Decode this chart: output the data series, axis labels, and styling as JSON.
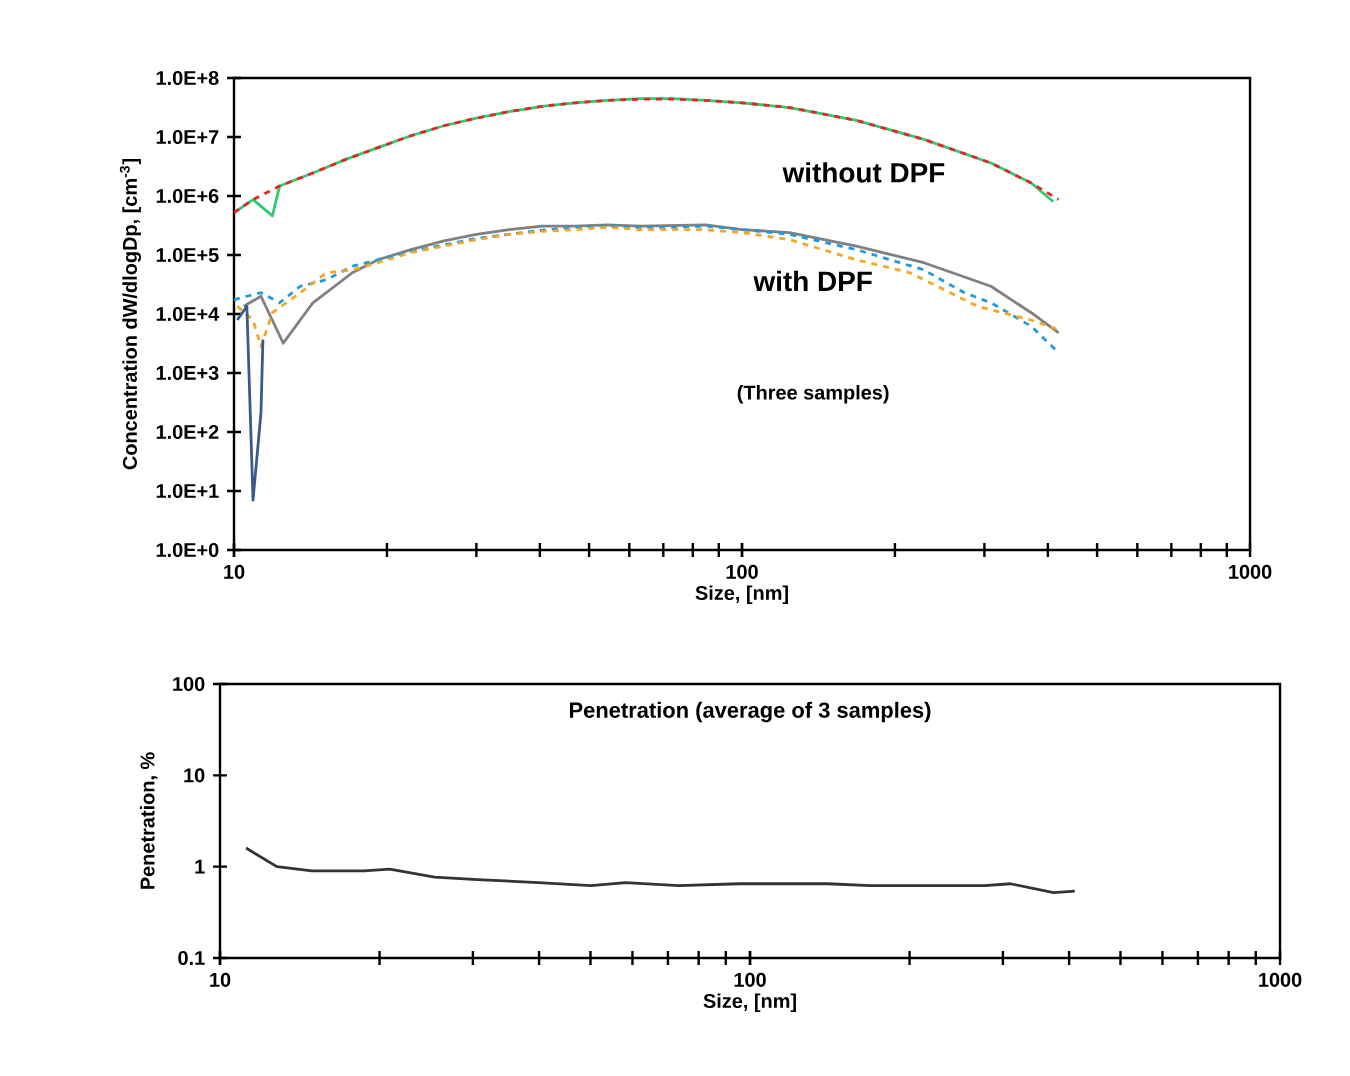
{
  "chart_data": [
    {
      "type": "line",
      "xlabel": "Size, [nm]",
      "ylabel": "Concentration dW/dlogDp, [cm$^{-3}$]",
      "log": "xy",
      "xlim": [
        10,
        1000
      ],
      "ylim": [
        1,
        100000000
      ],
      "xticks": [
        10,
        100,
        1000
      ],
      "yticks": [
        {
          "value": 1,
          "label": "1.0E+0"
        },
        {
          "value": 10,
          "label": "1.0E+1"
        },
        {
          "value": 100,
          "label": "1.0E+2"
        },
        {
          "value": 1000,
          "label": "1.0E+3"
        },
        {
          "value": 10000,
          "label": "1.0E+4"
        },
        {
          "value": 100000,
          "label": "1.0E+5"
        },
        {
          "value": 1000000,
          "label": "1.0E+6"
        },
        {
          "value": 10000000,
          "label": "1.0E+7"
        },
        {
          "value": 100000000,
          "label": "1.0E+8"
        }
      ],
      "annotations": [
        "without DPF",
        "with DPF",
        "(Three samples)"
      ],
      "grid": false,
      "marker": "none",
      "series": [
        {
          "color": "#2ecc71",
          "line_style": "solid",
          "x": [
            10,
            10.9,
            11.9,
            12.3,
            14.3,
            16.6,
            19.2,
            22.3,
            25.9,
            30,
            34.8,
            40.4,
            46.9,
            54.3,
            63.1,
            73.2,
            84.9,
            100,
            124,
            168,
            228,
            309,
            371,
            410
          ],
          "values": [
            520000,
            870000,
            460000,
            1480000,
            2450000,
            4170000,
            6600000,
            10500000,
            15500000,
            20900000,
            26900000,
            33100000,
            38000000,
            41700000,
            44700000,
            44700000,
            41700000,
            38000000,
            31600000,
            19100000,
            9100000,
            3630000,
            1660000,
            800000
          ]
        },
        {
          "color": "#ee2222",
          "line_style": "dashed",
          "x": [
            10,
            10.9,
            12.3,
            14.3,
            16.6,
            19.2,
            22.3,
            25.9,
            30,
            34.8,
            40.4,
            46.9,
            54.3,
            63.1,
            73.2,
            84.9,
            100,
            124,
            168,
            228,
            309,
            371,
            420
          ],
          "values": [
            525000,
            870000,
            1480000,
            2450000,
            4170000,
            6610000,
            10500000,
            15500000,
            20900000,
            26900000,
            33100000,
            38000000,
            41700000,
            43700000,
            43700000,
            41700000,
            38000000,
            31600000,
            19100000,
            9120000,
            3630000,
            1660000,
            870000
          ]
        },
        {
          "color": "#808080",
          "line_style": "solid",
          "x": [
            10.45,
            11.3,
            12.5,
            14.3,
            17.1,
            19.2,
            22.3,
            25.9,
            30,
            34.8,
            40.4,
            46.9,
            54.3,
            63.1,
            84.9,
            100,
            124,
            168,
            228,
            309,
            371,
            420
          ],
          "values": [
            13500,
            20000,
            3200,
            15500,
            50000,
            83000,
            123000,
            174000,
            224000,
            269000,
            309000,
            309000,
            324000,
            309000,
            324000,
            269000,
            240000,
            141000,
            74000,
            29500,
            10500,
            4800
          ]
        },
        {
          "color": "#1e9be0",
          "line_style": "dashed",
          "x": [
            10,
            10.6,
            11.3,
            12.3,
            13.5,
            15.2,
            17.1,
            19.2,
            22.3,
            25.9,
            30,
            34.8,
            40.4,
            46.9,
            54.3,
            63.1,
            73.2,
            84.9,
            100,
            124,
            168,
            228,
            274,
            309,
            371,
            420
          ],
          "values": [
            17400,
            20000,
            22900,
            15500,
            29500,
            38000,
            64600,
            83000,
            115000,
            148000,
            191000,
            224000,
            263000,
            295000,
            309000,
            295000,
            295000,
            309000,
            269000,
            224000,
            123000,
            56000,
            22900,
            15500,
            6200,
            2200
          ]
        },
        {
          "color": "#f5a623",
          "line_style": "dashed",
          "x": [
            10.15,
            10.9,
            11.3,
            11.9,
            13.5,
            15.2,
            17.1,
            19.2,
            22.3,
            25.9,
            30,
            34.8,
            40.4,
            46.9,
            54.3,
            63.1,
            84.9,
            100,
            124,
            168,
            214,
            291,
            371,
            420
          ],
          "values": [
            13500,
            7900,
            2800,
            10500,
            22900,
            50000,
            56000,
            74000,
            110000,
            141000,
            182000,
            224000,
            251000,
            269000,
            295000,
            269000,
            269000,
            240000,
            182000,
            83000,
            50000,
            13500,
            7900,
            5400
          ]
        },
        {
          "color": "#3a5a8c",
          "line_style": "solid",
          "x": [
            10.15,
            10.6,
            10.9,
            11.3,
            11.4
          ],
          "values": [
            7900,
            13500,
            7,
            210,
            3700
          ]
        }
      ]
    },
    {
      "type": "line",
      "title": "Penetration (average of 3 samples)",
      "xlabel": "Size, [nm]",
      "ylabel": "Penetration, %",
      "log": "xy",
      "xlim": [
        10,
        1000
      ],
      "ylim": [
        0.1,
        100
      ],
      "xticks": [
        10,
        100,
        1000
      ],
      "yticks": [
        0.1,
        1,
        10,
        100
      ],
      "grid": false,
      "marker": "none",
      "series": [
        {
          "color": "#333333",
          "line_style": "solid",
          "x": [
            11.2,
            12.8,
            14.9,
            18.7,
            20.9,
            25.4,
            30.6,
            39.9,
            50.1,
            58.3,
            73.3,
            95.5,
            140,
            169,
            277,
            310,
            374,
            410
          ],
          "values": [
            1.6,
            1.0,
            0.9,
            0.9,
            0.94,
            0.77,
            0.72,
            0.67,
            0.62,
            0.67,
            0.62,
            0.65,
            0.65,
            0.62,
            0.62,
            0.65,
            0.52,
            0.54
          ]
        }
      ]
    }
  ]
}
